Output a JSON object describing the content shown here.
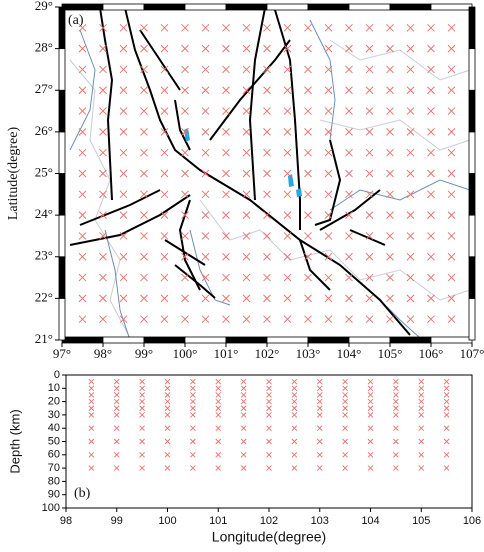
{
  "chart_data": [
    {
      "type": "map",
      "panel_label": "(a)",
      "ylabel": "Latitude(degree)",
      "xlim": [
        97,
        107
      ],
      "ylim": [
        21,
        29
      ],
      "xticks": [
        {
          "value": 97,
          "label": "97°"
        },
        {
          "value": 98,
          "label": "98°"
        },
        {
          "value": 99,
          "label": "99°"
        },
        {
          "value": 100,
          "label": "100°"
        },
        {
          "value": 101,
          "label": "101°"
        },
        {
          "value": 102,
          "label": "102°"
        },
        {
          "value": 103,
          "label": "103°"
        },
        {
          "value": 104,
          "label": "104°"
        },
        {
          "value": 105,
          "label": "105°"
        },
        {
          "value": 106,
          "label": "106°"
        },
        {
          "value": 107,
          "label": "107°"
        }
      ],
      "yticks": [
        {
          "value": 21,
          "label": "21°"
        },
        {
          "value": 22,
          "label": "22°"
        },
        {
          "value": 23,
          "label": "23°"
        },
        {
          "value": 24,
          "label": "24°"
        },
        {
          "value": 25,
          "label": "25°"
        },
        {
          "value": 26,
          "label": "26°"
        },
        {
          "value": 27,
          "label": "27°"
        },
        {
          "value": 28,
          "label": "28°"
        },
        {
          "value": 29,
          "label": "29°"
        }
      ],
      "grid_x": [
        97.5,
        98,
        98.5,
        99,
        99.5,
        100,
        100.5,
        101,
        101.5,
        102,
        102.5,
        103,
        103.5,
        104,
        104.5,
        105,
        105.5,
        106,
        106.5
      ],
      "grid_y": [
        21.5,
        22,
        22.5,
        23,
        23.5,
        24,
        24.5,
        25,
        25.5,
        26,
        26.5,
        27,
        27.5,
        28,
        28.5
      ],
      "color": "#e8706e"
    },
    {
      "type": "section",
      "panel_label": "(b)",
      "xlabel": "Longitude(degree)",
      "ylabel": "Depth (km)",
      "xlim": [
        98,
        106
      ],
      "ylim": [
        0,
        100
      ],
      "inverted": true,
      "xticks": [
        98,
        99,
        100,
        101,
        102,
        103,
        104,
        105,
        106
      ],
      "yticks": [
        0,
        10,
        20,
        30,
        40,
        50,
        60,
        70,
        80,
        90,
        100
      ],
      "grid_x": [
        98.5,
        99,
        99.5,
        100,
        100.5,
        101,
        101.5,
        102,
        102.5,
        103,
        103.5,
        104,
        104.5,
        105,
        105.5
      ],
      "grid_y": [
        5,
        10,
        15,
        20,
        25,
        30,
        40,
        50,
        60,
        70
      ],
      "color": "#e8706e"
    }
  ]
}
